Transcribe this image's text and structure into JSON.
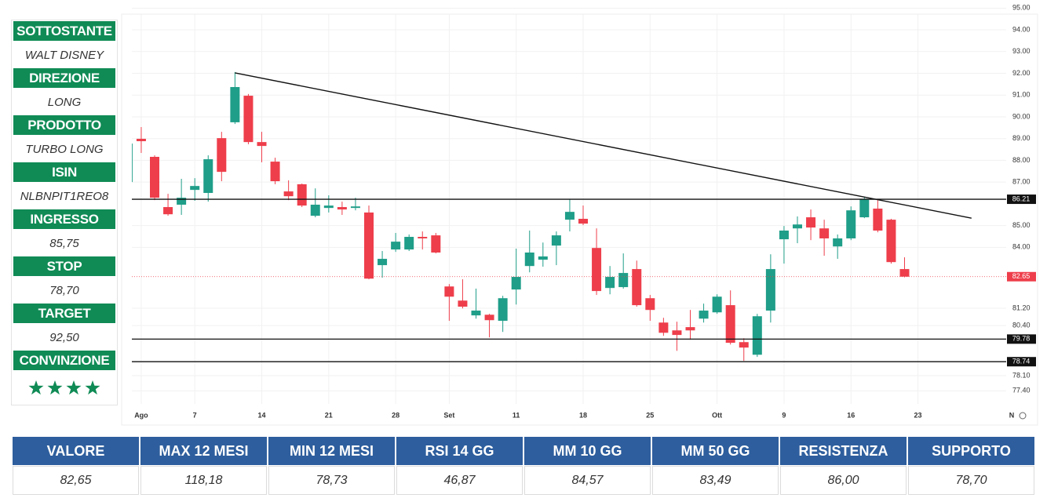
{
  "sidebar": [
    {
      "label": "SOTTOSTANTE",
      "value": "WALT DISNEY"
    },
    {
      "label": "DIREZIONE",
      "value": "LONG"
    },
    {
      "label": "PRODOTTO",
      "value": "TURBO LONG"
    },
    {
      "label": "ISIN",
      "value": "NLBNPIT1REO8"
    },
    {
      "label": "INGRESSO",
      "value": "85,75"
    },
    {
      "label": "STOP",
      "value": "78,70"
    },
    {
      "label": "TARGET",
      "value": "92,50"
    },
    {
      "label": "CONVINZIONE",
      "rating": 4
    }
  ],
  "table": {
    "header": [
      "VALORE",
      "MAX 12 MESI",
      "MIN 12 MESI",
      "RSI 14 GG",
      "MM 10 GG",
      "MM 50 GG",
      "RESISTENZA",
      "SUPPORTO"
    ],
    "rows": [
      [
        "82,65",
        "118,18",
        "78,73",
        "46,87",
        "84,57",
        "83,49",
        "86,00",
        "78,70"
      ]
    ]
  },
  "chart_data": {
    "type": "candlestick",
    "categories": [
      null,
      null,
      null,
      null,
      null,
      null,
      null,
      null,
      null,
      null,
      null,
      null,
      null,
      null,
      null,
      null,
      null,
      null,
      null,
      null,
      null,
      null,
      null,
      null,
      null,
      null,
      null,
      null,
      null,
      null,
      null,
      null,
      null,
      null,
      null,
      null,
      null,
      null,
      null,
      null,
      null,
      null,
      null,
      null,
      null,
      null,
      null,
      null,
      null,
      null,
      null,
      null,
      null,
      null,
      null,
      null,
      null,
      null,
      null
    ],
    "open": [
      87.0,
      88.99,
      88.16,
      85.85,
      85.96,
      86.64,
      86.5,
      89.02,
      89.75,
      90.97,
      88.84,
      87.94,
      86.57,
      86.9,
      85.45,
      85.81,
      85.85,
      85.81,
      85.6,
      83.18,
      83.9,
      83.9,
      84.48,
      84.55,
      82.2,
      81.55,
      80.87,
      80.9,
      80.62,
      82.06,
      83.14,
      83.43,
      84.08,
      85.27,
      85.31,
      83.97,
      82.13,
      82.17,
      83.0,
      81.66,
      80.54,
      80.18,
      80.33,
      80.72,
      81.01,
      81.34,
      79.64,
      79.06,
      81.09,
      84.37,
      84.87,
      85.38,
      84.87,
      84.04,
      84.41,
      85.38,
      85.78,
      85.27,
      83.0
    ],
    "high": [
      88.77,
      89.53,
      88.23,
      86.46,
      87.15,
      87.18,
      88.23,
      89.31,
      92.06,
      91.05,
      89.31,
      88.12,
      87.08,
      86.93,
      86.71,
      86.39,
      86.1,
      86.28,
      85.92,
      83.83,
      84.66,
      84.59,
      84.73,
      84.66,
      82.31,
      82.53,
      82.1,
      80.94,
      81.77,
      83.94,
      84.77,
      84.22,
      84.73,
      86.21,
      85.92,
      84.87,
      83.14,
      83.72,
      83.39,
      81.81,
      80.76,
      80.58,
      81.12,
      81.41,
      81.84,
      82.02,
      79.82,
      80.94,
      83.68,
      84.98,
      85.42,
      85.74,
      85.27,
      84.59,
      85.88,
      86.32,
      86.17,
      85.31,
      83.54
    ],
    "low": [
      87.0,
      88.34,
      86.17,
      85.45,
      85.49,
      86.14,
      86.1,
      87.04,
      89.67,
      88.74,
      87.91,
      86.9,
      86.17,
      85.85,
      85.38,
      85.6,
      85.49,
      85.7,
      82.53,
      82.6,
      83.79,
      83.83,
      83.9,
      83.72,
      80.62,
      81.19,
      80.72,
      79.86,
      80.11,
      81.37,
      82.85,
      83.11,
      83.18,
      84.73,
      85.02,
      81.81,
      81.84,
      82.1,
      81.27,
      80.62,
      79.93,
      79.24,
      79.75,
      80.54,
      80.94,
      79.53,
      78.78,
      78.96,
      80.54,
      83.25,
      84.19,
      84.33,
      83.61,
      83.47,
      84.33,
      85.34,
      84.69,
      83.25,
      82.62
    ],
    "close": [
      88.77,
      88.88,
      86.28,
      85.52,
      86.28,
      86.82,
      88.05,
      87.47,
      91.37,
      88.84,
      88.66,
      87.04,
      86.35,
      85.92,
      85.96,
      85.92,
      85.74,
      85.88,
      82.56,
      83.47,
      84.26,
      84.48,
      84.41,
      83.76,
      81.73,
      81.27,
      81.09,
      80.65,
      81.66,
      82.64,
      83.76,
      83.58,
      84.55,
      85.63,
      85.09,
      81.99,
      82.64,
      82.82,
      81.34,
      81.12,
      80.07,
      79.97,
      80.18,
      81.09,
      81.73,
      79.61,
      79.39,
      80.83,
      83.0,
      84.77,
      85.05,
      84.91,
      84.41,
      84.41,
      85.7,
      86.21,
      84.77,
      83.32,
      82.65
    ],
    "up_color": "#1f9e89",
    "down_color": "#ee3e4b",
    "xlim": [
      0.3,
      66
    ],
    "xticks": [
      {
        "value": 1,
        "label": "Ago"
      },
      {
        "value": 5,
        "label": "7"
      },
      {
        "value": 10,
        "label": "14"
      },
      {
        "value": 15,
        "label": "21"
      },
      {
        "value": 20,
        "label": "28"
      },
      {
        "value": 24,
        "label": "Set"
      },
      {
        "value": 29,
        "label": "11"
      },
      {
        "value": 34,
        "label": "18"
      },
      {
        "value": 39,
        "label": "25"
      },
      {
        "value": 44,
        "label": "Ott"
      },
      {
        "value": 49,
        "label": "9"
      },
      {
        "value": 54,
        "label": "16"
      },
      {
        "value": 59,
        "label": "23"
      },
      {
        "value": 66,
        "label": "N"
      }
    ],
    "ylim": [
      76.8,
      95.3
    ],
    "yticks": [
      {
        "value": 95,
        "label": "95.00"
      },
      {
        "value": 94,
        "label": "94.00"
      },
      {
        "value": 93,
        "label": "93.00"
      },
      {
        "value": 92,
        "label": "92.00"
      },
      {
        "value": 91,
        "label": "91.00"
      },
      {
        "value": 90,
        "label": "90.00"
      },
      {
        "value": 89,
        "label": "89.00"
      },
      {
        "value": 88,
        "label": "88.00"
      },
      {
        "value": 87,
        "label": "87.00"
      },
      {
        "value": 85,
        "label": "85.00"
      },
      {
        "value": 84,
        "label": "84.00"
      },
      {
        "value": 81.2,
        "label": "81.20"
      },
      {
        "value": 80.4,
        "label": "80.40"
      },
      {
        "value": 78.1,
        "label": "78.10"
      },
      {
        "value": 77.4,
        "label": "77.40"
      }
    ],
    "grid": true,
    "hlines": [
      86.21,
      79.78,
      78.74
    ],
    "last_price": 82.65,
    "last_price_color": "#ee3e4b",
    "trendline": {
      "x": [
        8,
        63
      ],
      "y": [
        92.02,
        85.34
      ]
    }
  }
}
